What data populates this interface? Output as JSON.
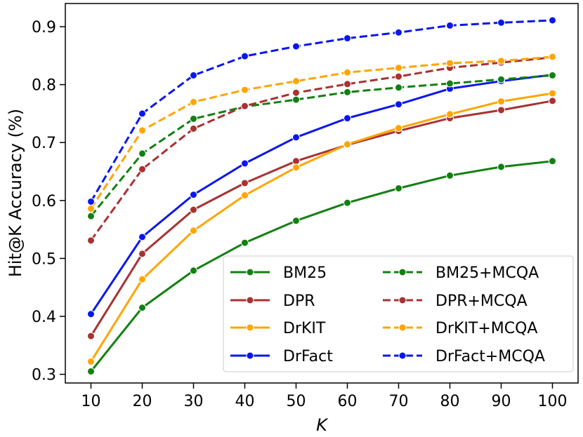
{
  "chart_data": {
    "type": "line",
    "title": "",
    "xlabel": "K",
    "ylabel": "Hit@K Accuracy (%)",
    "x": [
      10,
      20,
      30,
      40,
      50,
      60,
      70,
      80,
      90,
      100
    ],
    "xlim": [
      5,
      105
    ],
    "ylim": [
      0.285,
      0.94
    ],
    "xticks": [
      10,
      20,
      30,
      40,
      50,
      60,
      70,
      80,
      90,
      100
    ],
    "yticks": [
      0.3,
      0.4,
      0.5,
      0.6,
      0.7,
      0.8,
      0.9
    ],
    "grid": false,
    "legend_position": "lower-right",
    "series": [
      {
        "name": "BM25",
        "color": "#118011",
        "style": "solid",
        "values": [
          0.305,
          0.415,
          0.479,
          0.527,
          0.565,
          0.596,
          0.621,
          0.643,
          0.658,
          0.668
        ]
      },
      {
        "name": "DPR",
        "color": "#a83232",
        "style": "solid",
        "values": [
          0.366,
          0.508,
          0.584,
          0.63,
          0.668,
          0.696,
          0.72,
          0.742,
          0.756,
          0.772
        ]
      },
      {
        "name": "DrKIT",
        "color": "#ffa500",
        "style": "solid",
        "values": [
          0.322,
          0.464,
          0.548,
          0.609,
          0.657,
          0.697,
          0.725,
          0.749,
          0.771,
          0.785
        ]
      },
      {
        "name": "DrFact",
        "color": "#0a16ee",
        "style": "solid",
        "values": [
          0.404,
          0.537,
          0.61,
          0.664,
          0.709,
          0.742,
          0.766,
          0.793,
          0.806,
          0.817
        ]
      },
      {
        "name": "BM25+MCQA",
        "color": "#118011",
        "style": "dashed",
        "values": [
          0.573,
          0.681,
          0.741,
          0.762,
          0.774,
          0.787,
          0.795,
          0.802,
          0.809,
          0.816
        ]
      },
      {
        "name": "DPR+MCQA",
        "color": "#a83232",
        "style": "dashed",
        "values": [
          0.531,
          0.654,
          0.724,
          0.763,
          0.786,
          0.801,
          0.814,
          0.829,
          0.838,
          0.847
        ]
      },
      {
        "name": "DrKIT+MCQA",
        "color": "#ffa500",
        "style": "dashed",
        "values": [
          0.586,
          0.721,
          0.77,
          0.791,
          0.806,
          0.821,
          0.829,
          0.837,
          0.841,
          0.848
        ]
      },
      {
        "name": "DrFact+MCQA",
        "color": "#0a16ee",
        "style": "dashed",
        "values": [
          0.598,
          0.75,
          0.816,
          0.849,
          0.866,
          0.88,
          0.89,
          0.902,
          0.907,
          0.911
        ]
      }
    ]
  }
}
